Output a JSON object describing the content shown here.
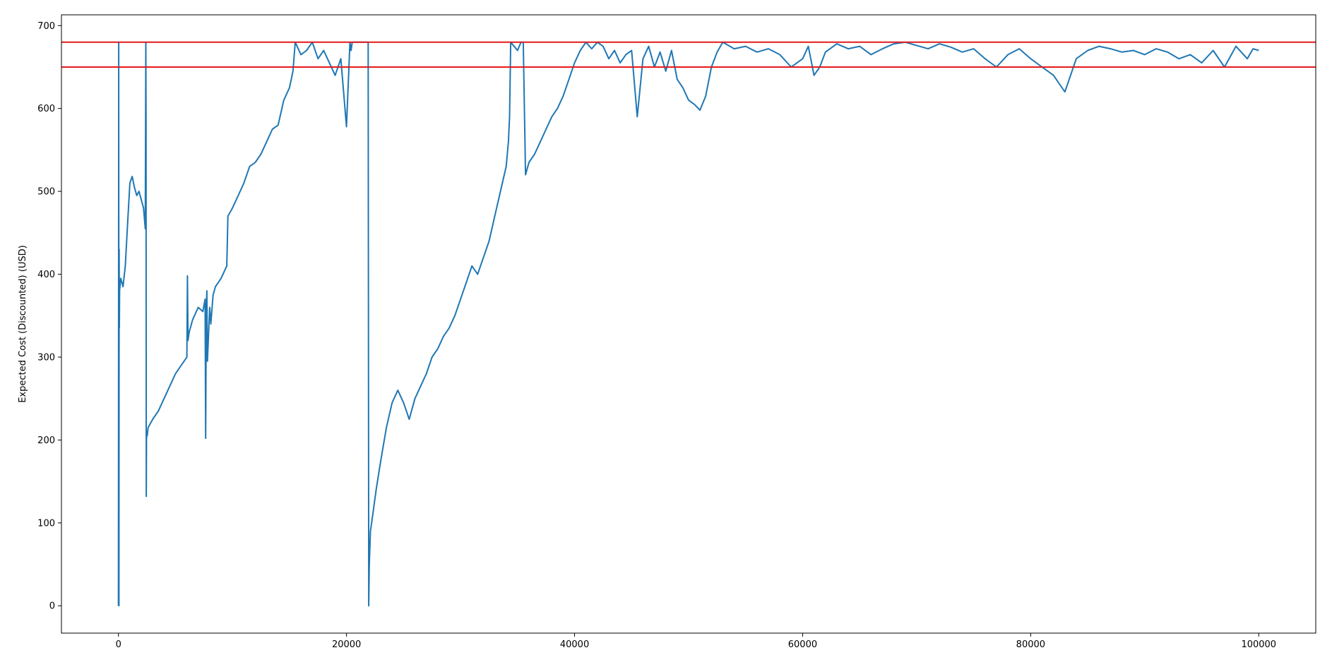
{
  "chart_data": {
    "type": "line",
    "title": "",
    "xlabel": "",
    "ylabel": "Expected Cost (Discounted) (USD)",
    "xlim": [
      -5000,
      105000
    ],
    "ylim": [
      -33,
      713
    ],
    "xticks": [
      0,
      20000,
      40000,
      60000,
      80000,
      100000
    ],
    "yticks": [
      0,
      100,
      200,
      300,
      400,
      500,
      600,
      700
    ],
    "grid": false,
    "legend": "none",
    "series": [
      {
        "color": "#1f77b4",
        "x": [
          0,
          20,
          40,
          60,
          80,
          100,
          200,
          400,
          600,
          800,
          1000,
          1200,
          1400,
          1600,
          1800,
          2000,
          2200,
          2350,
          2400,
          2420,
          2440,
          2460,
          2480,
          2520,
          2600,
          3000,
          3500,
          4000,
          4500,
          5000,
          5500,
          6000,
          6050,
          6100,
          6200,
          6500,
          7000,
          7400,
          7600,
          7650,
          7700,
          7750,
          7800,
          8000,
          8100,
          8300,
          8500,
          9000,
          9500,
          9600,
          10000,
          10500,
          11000,
          11500,
          12000,
          12500,
          13000,
          13500,
          14000,
          14500,
          15000,
          15300,
          15500,
          16000,
          16500,
          17000,
          17500,
          18000,
          18500,
          19000,
          19500,
          20000,
          20300,
          20400,
          20500,
          21000,
          21800,
          21900,
          21950,
          22000,
          22100,
          22300,
          22600,
          23000,
          23500,
          24000,
          24500,
          25000,
          25500,
          26000,
          26500,
          27000,
          27500,
          28000,
          28500,
          29000,
          29500,
          30000,
          30500,
          31000,
          31500,
          32000,
          32500,
          33000,
          33500,
          34000,
          34200,
          34300,
          34400,
          35000,
          35300,
          35400,
          35500,
          35700,
          36000,
          36500,
          37000,
          37500,
          38000,
          38500,
          39000,
          39500,
          40000,
          40500,
          41000,
          41500,
          42000,
          42500,
          43000,
          43500,
          44000,
          44500,
          45000,
          45500,
          46000,
          46500,
          47000,
          47500,
          48000,
          48500,
          49000,
          49500,
          50000,
          50500,
          51000,
          51500,
          52000,
          52500,
          53000,
          54000,
          55000,
          56000,
          57000,
          58000,
          59000,
          60000,
          60500,
          61000,
          61500,
          62000,
          63000,
          64000,
          65000,
          66000,
          67000,
          68000,
          69000,
          70000,
          71000,
          72000,
          73000,
          74000,
          75000,
          76000,
          77000,
          78000,
          79000,
          80000,
          81000,
          82000,
          82500,
          83000,
          84000,
          85000,
          86000,
          87000,
          88000,
          89000,
          90000,
          91000,
          92000,
          93000,
          94000,
          95000,
          96000,
          97000,
          98000,
          99000,
          99500,
          100000
        ],
        "y": [
          0,
          680,
          0,
          430,
          335,
          380,
          395,
          385,
          410,
          460,
          510,
          518,
          505,
          495,
          500,
          490,
          480,
          455,
          680,
          580,
          132,
          200,
          210,
          205,
          215,
          225,
          235,
          250,
          265,
          280,
          290,
          300,
          398,
          320,
          330,
          345,
          360,
          355,
          370,
          202,
          350,
          380,
          295,
          360,
          340,
          375,
          385,
          395,
          410,
          470,
          480,
          495,
          510,
          530,
          535,
          545,
          560,
          575,
          580,
          610,
          625,
          645,
          680,
          665,
          670,
          680,
          660,
          670,
          655,
          640,
          660,
          578,
          680,
          670,
          680,
          680,
          680,
          680,
          0,
          50,
          90,
          110,
          140,
          175,
          215,
          245,
          260,
          245,
          225,
          250,
          265,
          280,
          300,
          310,
          325,
          335,
          350,
          370,
          390,
          410,
          400,
          420,
          440,
          470,
          500,
          530,
          560,
          590,
          680,
          670,
          680,
          680,
          680,
          520,
          535,
          545,
          560,
          575,
          590,
          600,
          615,
          635,
          655,
          670,
          680,
          672,
          680,
          675,
          660,
          670,
          655,
          665,
          670,
          590,
          660,
          675,
          650,
          668,
          645,
          670,
          635,
          625,
          610,
          605,
          598,
          615,
          650,
          668,
          680,
          672,
          675,
          668,
          672,
          665,
          650,
          660,
          675,
          640,
          650,
          668,
          678,
          672,
          675,
          665,
          672,
          678,
          680,
          676,
          672,
          678,
          674,
          668,
          672,
          660,
          650,
          665,
          672,
          660,
          650,
          640,
          630,
          620,
          660,
          670,
          675,
          672,
          668,
          670,
          665,
          672,
          668,
          660,
          665,
          655,
          670,
          650,
          675,
          660,
          672,
          670
        ]
      }
    ],
    "reference_lines": [
      {
        "orientation": "horizontal",
        "y": 680,
        "color": "#e31a1c"
      },
      {
        "orientation": "horizontal",
        "y": 650,
        "color": "#e31a1c"
      }
    ]
  }
}
